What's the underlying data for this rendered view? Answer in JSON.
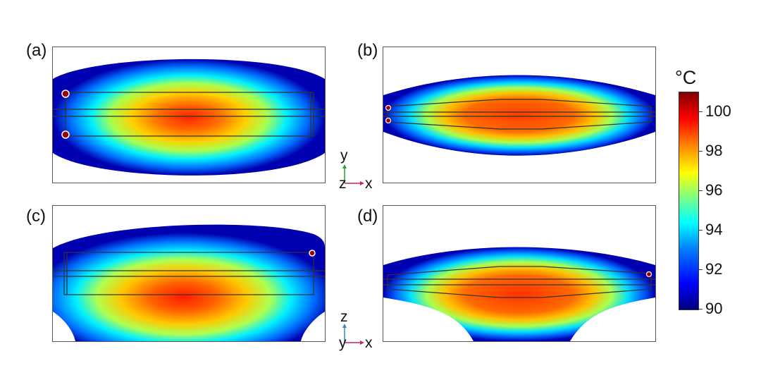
{
  "panels": [
    {
      "id": "a",
      "label": "(a)"
    },
    {
      "id": "b",
      "label": "(b)"
    },
    {
      "id": "c",
      "label": "(c)"
    },
    {
      "id": "d",
      "label": "(d)"
    }
  ],
  "triad_top": {
    "up_axis": "y",
    "out_axis": "z",
    "right_axis": "x"
  },
  "triad_bottom": {
    "up_axis": "z",
    "out_axis": "y",
    "right_axis": "x"
  },
  "colorbar": {
    "unit": "°C",
    "ticks": [
      "100",
      "98",
      "96",
      "94",
      "92",
      "90"
    ],
    "colormap": [
      "#00007f",
      "#0000ff",
      "#0080ff",
      "#00ffff",
      "#80ff80",
      "#ffff00",
      "#ff8000",
      "#ff0000",
      "#7f0000"
    ]
  }
}
